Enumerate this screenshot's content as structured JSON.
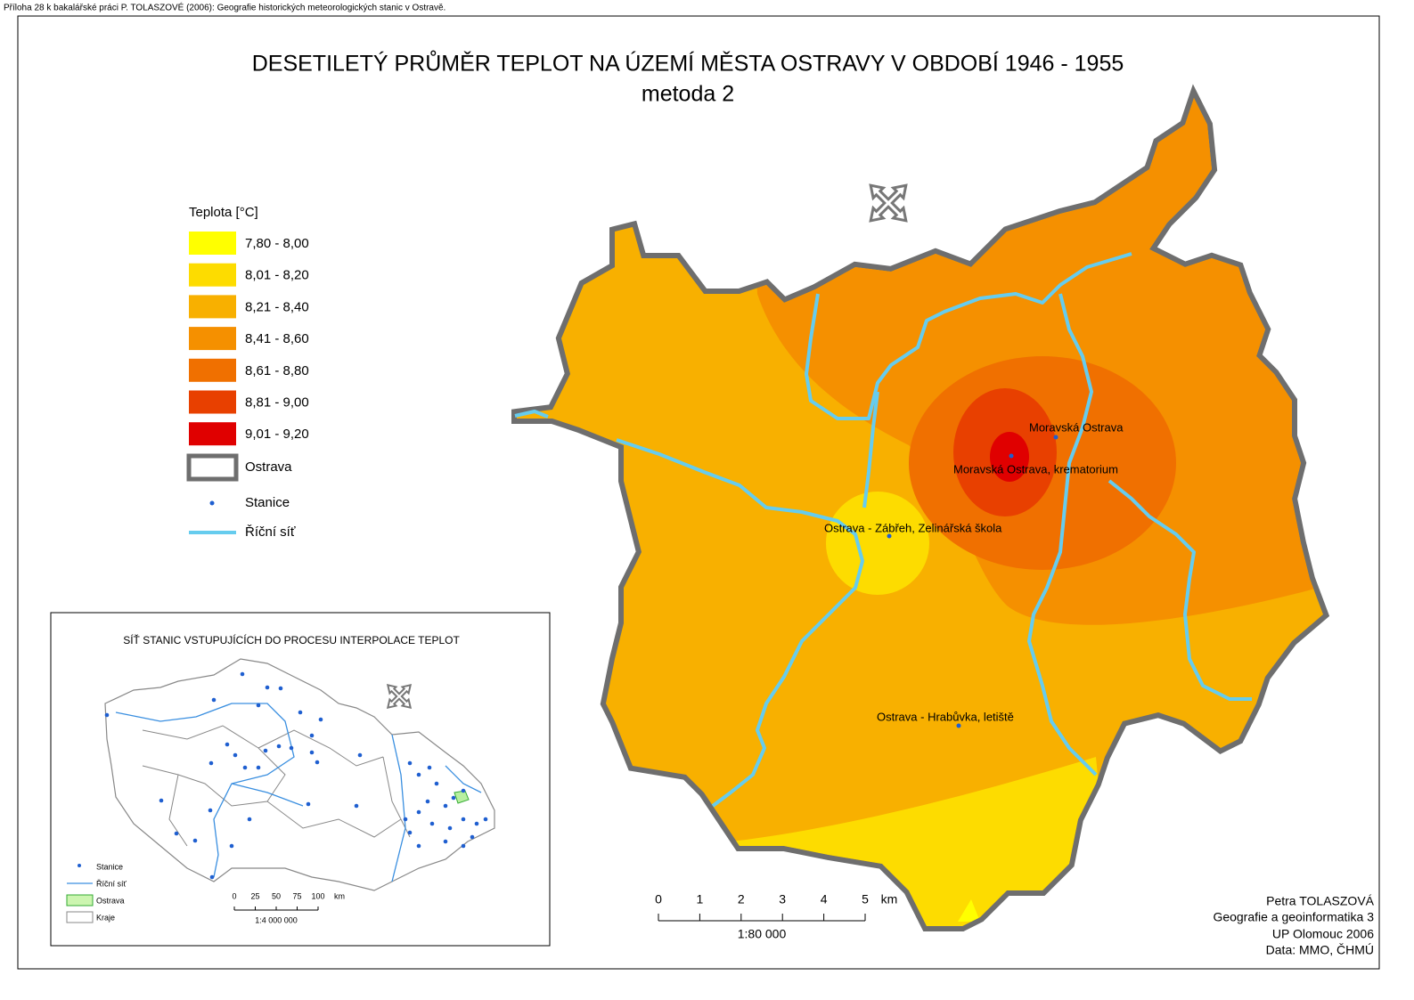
{
  "header": {
    "note": "Příloha 28 k bakalářské práci P. TOLASZOVÉ (2006): Geografie historických meteorologických stanic v Ostravě."
  },
  "title": "DESETILETÝ PRŮMĚR TEPLOT NA ÚZEMÍ MĚSTA OSTRAVY V OBDOBÍ 1946 - 1955",
  "subtitle": "metoda 2",
  "legend": {
    "title": "Teplota [°C]",
    "classes": [
      {
        "label": "7,80 - 8,00",
        "color": "#ffff00"
      },
      {
        "label": "8,01 - 8,20",
        "color": "#fddc00"
      },
      {
        "label": "8,21 - 8,40",
        "color": "#f8b000"
      },
      {
        "label": "8,41 - 8,60",
        "color": "#f59000"
      },
      {
        "label": "8,61 - 8,80",
        "color": "#f07000"
      },
      {
        "label": "8,81 - 9,00",
        "color": "#e84000"
      },
      {
        "label": "9,01 - 9,20",
        "color": "#e00000"
      }
    ],
    "boundary": "Ostrava",
    "stations": "Stanice",
    "rivers": "Říční síť"
  },
  "stations": [
    {
      "label": "Moravská Ostrava"
    },
    {
      "label": "Moravská Ostrava, krematorium"
    },
    {
      "label": "Ostrava - Zábřeh, Zelinářská škola"
    },
    {
      "label": "Ostrava - Hrabůvka, letiště"
    }
  ],
  "scale": {
    "ticks": [
      0,
      1,
      2,
      3,
      4,
      5
    ],
    "unit": "km",
    "ratio": "1:80 000"
  },
  "inset": {
    "title": "SÍŤ STANIC VSTUPUJÍCÍCH DO PROCESU INTERPOLACE TEPLOT",
    "legend": [
      "Stanice",
      "Říční síť",
      "Ostrava",
      "Kraje"
    ],
    "scale_ticks": [
      0,
      25,
      50,
      75,
      100
    ],
    "unit": "km",
    "ratio": "1:4 000 000"
  },
  "credits": [
    "Petra TOLASZOVÁ",
    "Geografie a geoinformatika 3",
    "UP Olomouc 2006",
    "Data: MMO, ČHMÚ"
  ]
}
